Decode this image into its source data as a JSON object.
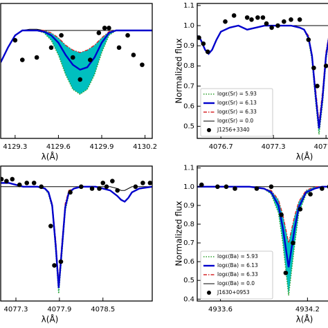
{
  "chart_data": [
    {
      "type": "line",
      "xlabel": "λ(Å)",
      "xlim": [
        4129.2,
        4130.25
      ],
      "ylim": [
        0.55,
        1.1
      ],
      "xticks": [
        4129.3,
        4129.6,
        4129.9,
        4130.2
      ],
      "x": [
        4129.2,
        4129.25,
        4129.3,
        4129.35,
        4129.4,
        4129.45,
        4129.5,
        4129.55,
        4129.6,
        4129.65,
        4129.7,
        4129.75,
        4129.8,
        4129.85,
        4129.9,
        4129.95,
        4130.0,
        4130.1,
        4130.25
      ],
      "band_color": "#00bfbf",
      "series": [
        {
          "color": "#2ca02c",
          "style": "dotted",
          "values": [
            0.86,
            0.92,
            0.97,
            0.99,
            0.99,
            0.99,
            0.98,
            0.95,
            0.89,
            0.81,
            0.75,
            0.73,
            0.75,
            0.81,
            0.9,
            0.97,
            0.99,
            0.99,
            0.99
          ]
        },
        {
          "color": "#0000cc",
          "style": "solid",
          "values": [
            0.86,
            0.92,
            0.97,
            0.99,
            0.99,
            0.99,
            0.985,
            0.97,
            0.94,
            0.89,
            0.85,
            0.83,
            0.84,
            0.88,
            0.94,
            0.98,
            0.99,
            0.99,
            0.99
          ]
        },
        {
          "color": "#d62728",
          "style": "dashdot",
          "values": [
            0.86,
            0.92,
            0.97,
            0.99,
            0.99,
            0.99,
            0.99,
            0.98,
            0.96,
            0.93,
            0.91,
            0.9,
            0.91,
            0.93,
            0.96,
            0.985,
            0.99,
            0.99,
            0.99
          ]
        },
        {
          "color": "#000000",
          "style": "thin",
          "values": [
            0.86,
            0.92,
            0.97,
            0.99,
            0.995,
            0.995,
            0.99,
            0.99,
            0.99,
            0.99,
            0.99,
            0.99,
            0.99,
            0.99,
            0.99,
            0.99,
            0.99,
            0.99,
            0.99
          ]
        }
      ],
      "points": {
        "color": "#000000",
        "x": [
          4129.3,
          4129.35,
          4129.45,
          4129.55,
          4129.62,
          4129.7,
          4129.75,
          4129.82,
          4129.88,
          4129.92,
          4129.95,
          4130.02,
          4130.08,
          4130.12,
          4130.18
        ],
        "values": [
          0.95,
          0.87,
          0.88,
          0.92,
          0.97,
          0.88,
          0.79,
          0.87,
          0.98,
          1.0,
          1.0,
          0.92,
          0.97,
          0.89,
          0.85
        ]
      }
    },
    {
      "type": "line",
      "xlabel": "λ(Å)",
      "ylabel": "Normalized flux",
      "xlim": [
        4076.43,
        4077.97
      ],
      "ylim": [
        0.44,
        1.11
      ],
      "xticks": [
        4076.7,
        4077.3,
        4077.9
      ],
      "yticks": [
        0.5,
        0.6,
        0.7,
        0.8,
        0.9,
        {
          "value": 1,
          "label": "1.0"
        },
        1.1
      ],
      "x": [
        4076.43,
        4076.47,
        4076.52,
        4076.56,
        4076.6,
        4076.65,
        4076.7,
        4076.8,
        4076.9,
        4077.0,
        4077.1,
        4077.2,
        4077.3,
        4077.4,
        4077.5,
        4077.6,
        4077.65,
        4077.7,
        4077.74,
        4077.78,
        4077.82,
        4077.86,
        4077.9,
        4077.94,
        4077.98
      ],
      "band_color": "#00bfbf",
      "series": [
        {
          "name": "logε(Sr) = 5.93",
          "color": "#2ca02c",
          "style": "dotted",
          "values": [
            0.95,
            0.93,
            0.88,
            0.86,
            0.88,
            0.93,
            0.97,
            0.99,
            1.0,
            0.98,
            0.99,
            1.0,
            1.0,
            1.0,
            1.0,
            0.99,
            0.98,
            0.93,
            0.83,
            0.63,
            0.46,
            0.61,
            0.83,
            0.95,
            0.99
          ]
        },
        {
          "name": "logε(Sr) = 6.13",
          "color": "#0000cc",
          "style": "solid",
          "values": [
            0.95,
            0.93,
            0.88,
            0.86,
            0.88,
            0.93,
            0.97,
            0.99,
            1.0,
            0.98,
            0.99,
            1.0,
            1.0,
            1.0,
            1.0,
            0.99,
            0.98,
            0.94,
            0.85,
            0.66,
            0.49,
            0.64,
            0.85,
            0.96,
            0.99
          ]
        },
        {
          "name": "logε(Sr) = 6.33",
          "color": "#d62728",
          "style": "dashdot",
          "values": [
            0.95,
            0.93,
            0.88,
            0.86,
            0.88,
            0.93,
            0.97,
            0.99,
            1.0,
            0.98,
            0.99,
            1.0,
            1.0,
            1.0,
            1.0,
            0.99,
            0.98,
            0.95,
            0.86,
            0.69,
            0.52,
            0.67,
            0.87,
            0.97,
            0.99
          ]
        },
        {
          "name": "logε(Sr) = 0.0",
          "color": "#000000",
          "style": "thin",
          "values": [
            0.95,
            0.93,
            0.88,
            0.86,
            0.88,
            0.93,
            0.97,
            0.99,
            1.0,
            0.98,
            0.99,
            1.0,
            1.0,
            1.0,
            1.0,
            1.0,
            1.0,
            1.0,
            1.0,
            1.0,
            1.0,
            1.0,
            1.0,
            1.0,
            1.0
          ]
        }
      ],
      "points": {
        "name": "J1256+3340",
        "color": "#000000",
        "x": [
          4076.45,
          4076.5,
          4076.55,
          4076.75,
          4076.85,
          4077.0,
          4077.05,
          4077.12,
          4077.18,
          4077.22,
          4077.28,
          4077.35,
          4077.42,
          4077.5,
          4077.6,
          4077.7,
          4077.76,
          4077.8,
          4077.9
        ],
        "values": [
          0.94,
          0.91,
          0.87,
          1.02,
          1.05,
          1.04,
          1.03,
          1.04,
          1.04,
          1.01,
          0.99,
          1.0,
          1.02,
          1.03,
          1.03,
          0.93,
          0.79,
          0.7,
          0.8
        ]
      }
    },
    {
      "type": "line",
      "xlabel": "λ(Å)",
      "xlim": [
        4077.09,
        4079.18
      ],
      "ylim": [
        0.39,
        1.11
      ],
      "xticks": [
        4077.3,
        4077.9,
        4078.5
      ],
      "x": [
        4077.09,
        4077.2,
        4077.3,
        4077.4,
        4077.5,
        4077.6,
        4077.7,
        4077.75,
        4077.8,
        4077.85,
        4077.89,
        4077.93,
        4077.98,
        4078.03,
        4078.1,
        4078.2,
        4078.3,
        4078.4,
        4078.5,
        4078.6,
        4078.7,
        4078.75,
        4078.8,
        4078.85,
        4078.9,
        4079.0,
        4079.18
      ],
      "band_color": "#00bfbf",
      "series": [
        {
          "color": "#2ca02c",
          "style": "dotted",
          "values": [
            1.02,
            1.02,
            1.01,
            1.0,
            1.0,
            1.0,
            0.99,
            0.96,
            0.89,
            0.65,
            0.43,
            0.62,
            0.87,
            0.96,
            0.99,
            1.0,
            1.0,
            1.0,
            0.99,
            0.98,
            0.95,
            0.93,
            0.92,
            0.94,
            0.97,
            0.99,
            1.0
          ]
        },
        {
          "color": "#0000cc",
          "style": "solid",
          "values": [
            1.02,
            1.02,
            1.01,
            1.0,
            1.0,
            1.0,
            0.99,
            0.97,
            0.9,
            0.68,
            0.46,
            0.65,
            0.89,
            0.97,
            0.99,
            1.0,
            1.0,
            1.0,
            0.99,
            0.98,
            0.95,
            0.93,
            0.92,
            0.94,
            0.97,
            0.99,
            1.0
          ]
        },
        {
          "color": "#d62728",
          "style": "dashdot",
          "values": [
            1.02,
            1.02,
            1.01,
            1.0,
            1.0,
            1.0,
            0.99,
            0.97,
            0.91,
            0.71,
            0.49,
            0.68,
            0.91,
            0.98,
            0.99,
            1.0,
            1.0,
            1.0,
            0.99,
            0.98,
            0.95,
            0.93,
            0.92,
            0.94,
            0.97,
            0.99,
            1.0
          ]
        },
        {
          "color": "#000000",
          "style": "thin",
          "values": [
            1.0,
            1.0,
            1.0,
            1.0,
            1.0,
            1.0,
            1.0,
            1.0,
            1.0,
            1.0,
            1.0,
            1.0,
            1.0,
            1.0,
            1.0,
            1.0,
            1.0,
            1.0,
            1.0,
            1.0,
            0.99,
            0.98,
            0.98,
            0.99,
            1.0,
            1.0,
            1.0
          ]
        }
      ],
      "points": {
        "color": "#000000",
        "x": [
          4077.1,
          4077.17,
          4077.25,
          4077.35,
          4077.45,
          4077.55,
          4077.65,
          4077.78,
          4077.83,
          4077.92,
          4078.05,
          4078.2,
          4078.35,
          4078.45,
          4078.5,
          4078.55,
          4078.63,
          4078.7,
          4078.95,
          4079.05,
          4079.15
        ],
        "values": [
          1.04,
          1.03,
          1.04,
          1.01,
          1.02,
          1.02,
          1.0,
          0.79,
          0.58,
          0.6,
          0.97,
          1.0,
          0.99,
          0.99,
          1.02,
          1.0,
          1.03,
          0.98,
          1.0,
          1.02,
          1.02
        ]
      }
    },
    {
      "type": "line",
      "xlabel": "λ(Å)",
      "ylabel": "Normalized flux",
      "xlim": [
        4933.44,
        4934.37
      ],
      "ylim": [
        0.39,
        1.11
      ],
      "xticks": [
        4933.6,
        4934.2
      ],
      "yticks": [
        0.4,
        0.5,
        0.6,
        0.7,
        0.8,
        0.9,
        {
          "value": 1,
          "label": "1.0"
        },
        1.1
      ],
      "x": [
        4933.44,
        4933.5,
        4933.6,
        4933.7,
        4933.8,
        4933.9,
        4933.95,
        4934.0,
        4934.03,
        4934.07,
        4934.11,
        4934.14,
        4934.19,
        4934.25,
        4934.3,
        4934.37
      ],
      "band_color": "#00bfbf",
      "series": [
        {
          "name": "logε(Ba) = 5.93",
          "color": "#2ca02c",
          "style": "dotted",
          "values": [
            1.0,
            1.0,
            1.0,
            1.0,
            1.0,
            0.99,
            0.96,
            0.86,
            0.7,
            0.42,
            0.68,
            0.86,
            0.96,
            0.99,
            1.0,
            1.0
          ]
        },
        {
          "name": "logε(Ba) = 6.13",
          "color": "#0000cc",
          "style": "solid",
          "values": [
            1.0,
            1.0,
            1.0,
            1.0,
            1.0,
            0.99,
            0.97,
            0.9,
            0.78,
            0.57,
            0.77,
            0.89,
            0.97,
            0.99,
            1.0,
            1.0
          ]
        },
        {
          "name": "logε(Ba) = 6.33",
          "color": "#d62728",
          "style": "dashdot",
          "values": [
            1.0,
            1.0,
            1.0,
            1.0,
            1.0,
            0.99,
            0.98,
            0.93,
            0.85,
            0.7,
            0.84,
            0.92,
            0.98,
            1.0,
            1.0,
            1.0
          ]
        },
        {
          "name": "logε(Ba) = 0.0",
          "color": "#000000",
          "style": "thin",
          "values": [
            1.0,
            1.0,
            1.0,
            1.0,
            1.0,
            1.0,
            1.0,
            1.0,
            1.0,
            1.0,
            1.0,
            1.0,
            1.0,
            1.0,
            1.0,
            1.0
          ]
        }
      ],
      "points": {
        "name": "J1630+0953",
        "color": "#000000",
        "x": [
          4933.47,
          4933.58,
          4933.64,
          4933.7,
          4933.85,
          4933.95,
          4934.02,
          4934.05,
          4934.1,
          4934.15,
          4934.22,
          4934.3,
          4934.35
        ],
        "values": [
          1.01,
          1.0,
          1.0,
          0.99,
          0.99,
          1.0,
          0.85,
          0.54,
          0.7,
          0.88,
          0.96,
          0.99,
          1.0
        ]
      }
    }
  ]
}
